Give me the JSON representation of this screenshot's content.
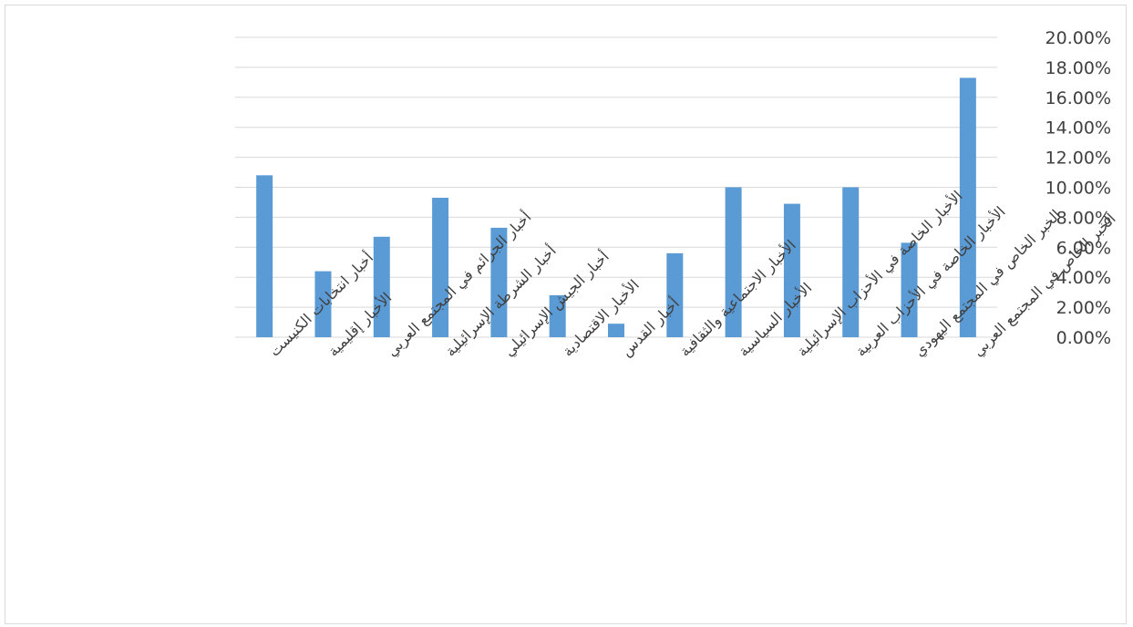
{
  "chart_data": {
    "type": "bar",
    "title": "",
    "xlabel": "",
    "ylabel": "",
    "ylim": [
      0,
      20
    ],
    "y_tick_step": 2,
    "y_tick_labels": [
      "0.00%",
      "2.00%",
      "4.00%",
      "6.00%",
      "8.00%",
      "10.00%",
      "12.00%",
      "14.00%",
      "16.00%",
      "18.00%",
      "20.00%"
    ],
    "y_axis_side": "right",
    "grid": true,
    "legend": "none",
    "bar_color": "#5b9bd5",
    "categories": [
      "الخبر الخاص في المجتمع العربي",
      "الخبر الخاص في المجتمع اليهودي",
      "الأخبار الخاصة في الأحزاب العربية",
      "الأخبار الخاصة في الأحزاب الإسرائيلية",
      "الأخبار السياسية",
      "الأخبار الاجتماعية والثقافية",
      "أخبار القدس",
      "الأخبار الاقتصادية",
      "أخبار الجيش الإسرائيلي",
      "أخبار الشرطة الإسرائيلية",
      "أخبار الجرائم في المجتمع العربي",
      "الأخبار إقليمية",
      "أخبار انتخابات الكنيست"
    ],
    "values": [
      17.3,
      6.3,
      10.0,
      8.9,
      10.0,
      5.6,
      0.9,
      2.8,
      7.3,
      9.3,
      6.7,
      4.4,
      10.8
    ]
  }
}
